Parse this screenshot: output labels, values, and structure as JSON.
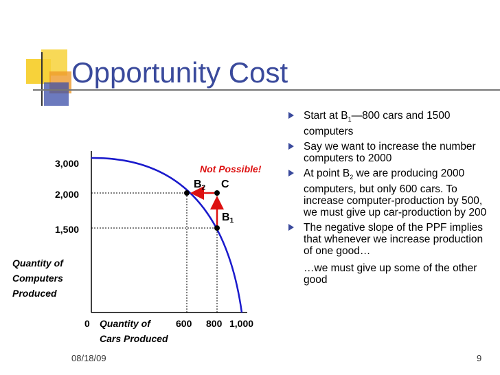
{
  "slide": {
    "title": "Opportunity Cost",
    "date": "08/18/09",
    "page_number": "9"
  },
  "colors": {
    "title": "#3a4a9c",
    "curve": "#1a1acc",
    "arrow": "#dd1111",
    "deco_yellow": "#f7d23a",
    "deco_orange": "#ee9a2a",
    "deco_blue": "#3b4ea8"
  },
  "bullets": [
    {
      "text": "Start at B",
      "sub": "1",
      "tail": "—800 cars and 1500 computers"
    },
    {
      "text": "Say we want to increase the number computers to 2000",
      "sub": "",
      "tail": ""
    },
    {
      "text": "At point B",
      "sub": "2",
      "tail": " we are producing 2000 computers, but only 600 cars.  To increase computer-production by 500, we must give up car-production by 200"
    },
    {
      "text": "The negative slope of the PPF implies that whenever we increase production of one good…",
      "sub": "",
      "tail": ""
    }
  ],
  "sub_bullet": "…we must give up some of the other good",
  "diagram": {
    "y_label_lines": [
      "Quantity of",
      "Computers",
      "Produced"
    ],
    "x_label_lines": [
      "Quantity of",
      "Cars Produced"
    ],
    "origin": "0",
    "y_ticks": [
      "3,000",
      "2,000",
      "1,500"
    ],
    "x_ticks": [
      "600",
      "800",
      "1,000"
    ],
    "not_possible": "Not Possible!",
    "points": {
      "b2": {
        "letter": "B",
        "sub": "2"
      },
      "c": {
        "letter": "C"
      },
      "b1": {
        "letter": "B",
        "sub": "1"
      }
    }
  }
}
